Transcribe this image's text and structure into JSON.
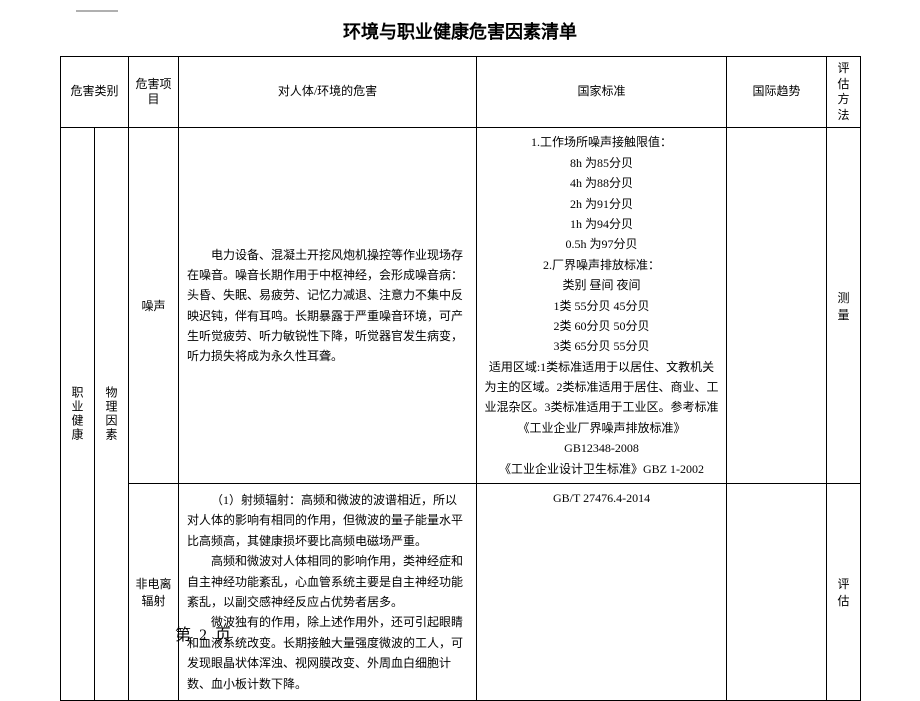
{
  "title": "环境与职业健康危害因素清单",
  "headers": {
    "category": "危害类别",
    "item": "危害项目",
    "harm": "对人体/环境的危害",
    "standard": "国家标准",
    "trend": "国际趋势",
    "eval": "评估方法"
  },
  "side": {
    "cat1": "职业健康",
    "cat2": "物理因素"
  },
  "noise": {
    "item": "噪声",
    "harm": "电力设备、混凝土开挖风炮机操控等作业现场存在噪音。噪音长期作用于中枢神经，会形成噪音病：头昏、失眠、易疲劳、记忆力减退、注意力不集中反映迟钝，伴有耳鸣。长期暴露于严重噪音环境，可产生听觉疲劳、听力敏锐性下降，听觉器官发生病变，听力损失将成为永久性耳聋。",
    "std": {
      "l1": "1.工作场所噪声接触限值：",
      "l2": "8h 为85分贝",
      "l3": "4h 为88分贝",
      "l4": "2h 为91分贝",
      "l5": "1h 为94分贝",
      "l6": "0.5h 为97分贝",
      "l7": "2.厂界噪声排放标准：",
      "l8": "类别 昼间 夜间",
      "l9": "1类 55分贝 45分贝",
      "l10": "2类 60分贝 50分贝",
      "l11": "3类 65分贝 55分贝",
      "l12": "适用区域:1类标准适用于以居住、文教机关为主的区域。2类标准适用于居住、商业、工业混杂区。3类标准适用于工业区。参考标准",
      "l13": "《工业企业厂界噪声排放标准》",
      "l14": "GB12348-2008",
      "l15": "《工业企业设计卫生标准》GBZ 1-2002"
    },
    "eval": "测量"
  },
  "rad": {
    "item": "非电离辐射",
    "harm_p1": "（1）射频辐射：高频和微波的波谱相近，所以对人体的影响有相同的作用，但微波的量子能量水平比高频高，其健康损坏要比高频电磁场严重。",
    "harm_p2": "高频和微波对人体相同的影响作用，类神经症和自主神经功能紊乱，心血管系统主要是自主神经功能紊乱，以副交感神经反应占优势者居多。",
    "harm_p3": "微波独有的作用，除上述作用外，还可引起眼睛和血液系统改变。长期接触大量强度微波的工人，可发现眼晶状体浑浊、视网膜改变、外周血白细胞计数、血小板计数下降。",
    "std": "GB/T 27476.4-2014",
    "eval": "评估"
  },
  "page": "第 2 页"
}
